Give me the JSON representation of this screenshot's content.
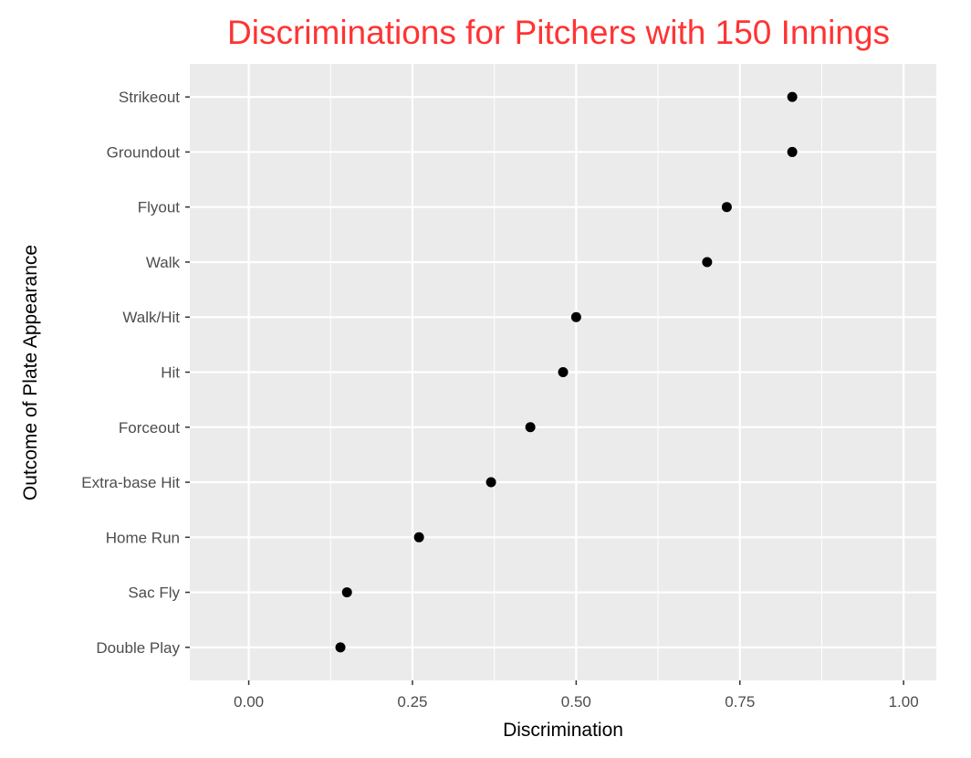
{
  "chart_data": {
    "type": "scatter",
    "title": "Discriminations for Pitchers with 150 Innings",
    "title_color": "#ff3333",
    "xlabel": "Discrimination",
    "ylabel": "Outcome of Plate Appearance",
    "xlim": [
      -0.09,
      1.05
    ],
    "x_ticks": [
      0,
      0.25,
      0.5,
      0.75,
      1
    ],
    "x_tick_labels": [
      "0.00",
      "0.25",
      "0.50",
      "0.75",
      "1.00"
    ],
    "categories": [
      "Strikeout",
      "Groundout",
      "Flyout",
      "Walk",
      "Walk/Hit",
      "Hit",
      "Forceout",
      "Extra-base Hit",
      "Home Run",
      "Sac Fly",
      "Double Play"
    ],
    "values": [
      0.83,
      0.83,
      0.73,
      0.7,
      0.5,
      0.48,
      0.43,
      0.37,
      0.26,
      0.15,
      0.14
    ],
    "grid": true,
    "panel_color": "#ebebeb",
    "grid_color": "#ffffff",
    "point_color": "#000000"
  }
}
